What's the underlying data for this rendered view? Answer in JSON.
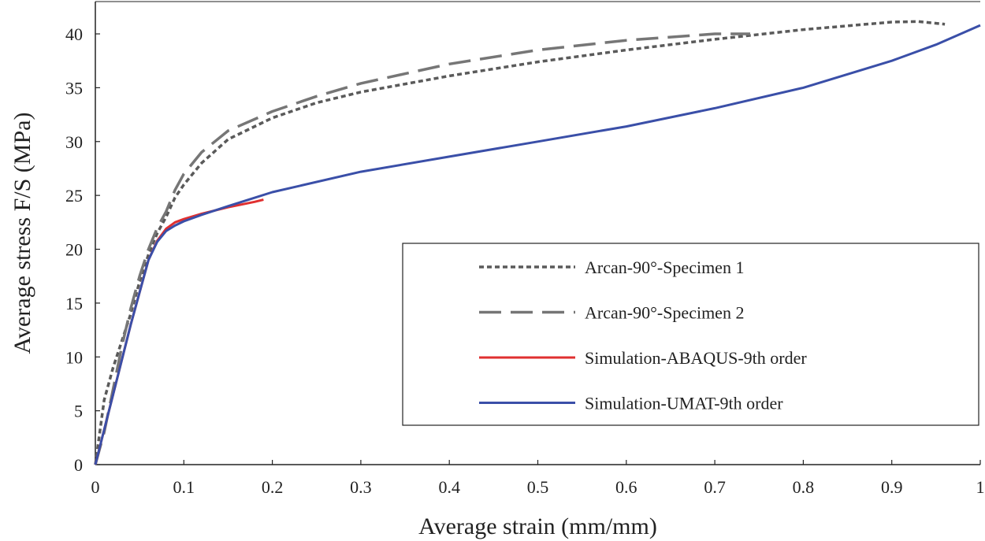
{
  "chart_data": {
    "type": "line",
    "title": "",
    "xlabel": "Average strain (mm/mm)",
    "ylabel": "Average stress F/S (MPa)",
    "xlim": [
      0,
      1
    ],
    "ylim": [
      0,
      43
    ],
    "xticks": [
      "0",
      "0.1",
      "0.2",
      "0.3",
      "0.4",
      "0.5",
      "0.6",
      "0.7",
      "0.8",
      "0.9",
      "1"
    ],
    "yticks": [
      "0",
      "5",
      "10",
      "15",
      "20",
      "25",
      "30",
      "35",
      "40"
    ],
    "grid": false,
    "legend_position": "center-right",
    "series": [
      {
        "name": "Arcan-90°-Specimen 1",
        "color": "#5a5a5a",
        "style": "dotted",
        "x": [
          0,
          0.01,
          0.02,
          0.03,
          0.04,
          0.05,
          0.06,
          0.07,
          0.08,
          0.09,
          0.1,
          0.12,
          0.15,
          0.2,
          0.25,
          0.3,
          0.4,
          0.5,
          0.6,
          0.7,
          0.8,
          0.9,
          0.93,
          0.96
        ],
        "y": [
          0,
          6,
          9,
          11.5,
          14,
          17,
          19.5,
          21.5,
          23,
          24.8,
          26,
          28,
          30.2,
          32.2,
          33.6,
          34.6,
          36.1,
          37.4,
          38.5,
          39.5,
          40.4,
          41.1,
          41.15,
          40.9
        ]
      },
      {
        "name": "Arcan-90°-Specimen 2",
        "color": "#767676",
        "style": "dashed",
        "x": [
          0,
          0.01,
          0.02,
          0.03,
          0.04,
          0.05,
          0.06,
          0.07,
          0.08,
          0.09,
          0.1,
          0.12,
          0.15,
          0.2,
          0.25,
          0.3,
          0.4,
          0.5,
          0.6,
          0.7,
          0.74
        ],
        "y": [
          0,
          3,
          7,
          11,
          14.5,
          17.5,
          20,
          22,
          23.5,
          25.5,
          27,
          29,
          31,
          32.8,
          34.2,
          35.4,
          37.2,
          38.5,
          39.4,
          40,
          40
        ]
      },
      {
        "name": "Simulation-ABAQUS-9th order",
        "color": "#e03030",
        "style": "solid",
        "x": [
          0,
          0.02,
          0.04,
          0.06,
          0.07,
          0.08,
          0.09,
          0.1,
          0.12,
          0.15,
          0.18,
          0.19
        ],
        "y": [
          0,
          6.5,
          13,
          19,
          20.8,
          21.9,
          22.5,
          22.8,
          23.3,
          23.9,
          24.4,
          24.6
        ]
      },
      {
        "name": "Simulation-UMAT-9th order",
        "color": "#3a4fa8",
        "style": "solid",
        "x": [
          0,
          0.02,
          0.04,
          0.06,
          0.07,
          0.08,
          0.09,
          0.1,
          0.12,
          0.15,
          0.2,
          0.3,
          0.4,
          0.5,
          0.6,
          0.7,
          0.8,
          0.9,
          0.95,
          1
        ],
        "y": [
          0,
          6.5,
          13,
          19,
          20.7,
          21.7,
          22.2,
          22.6,
          23.2,
          24,
          25.3,
          27.2,
          28.6,
          30,
          31.4,
          33.1,
          35,
          37.5,
          39,
          40.8
        ]
      }
    ]
  }
}
